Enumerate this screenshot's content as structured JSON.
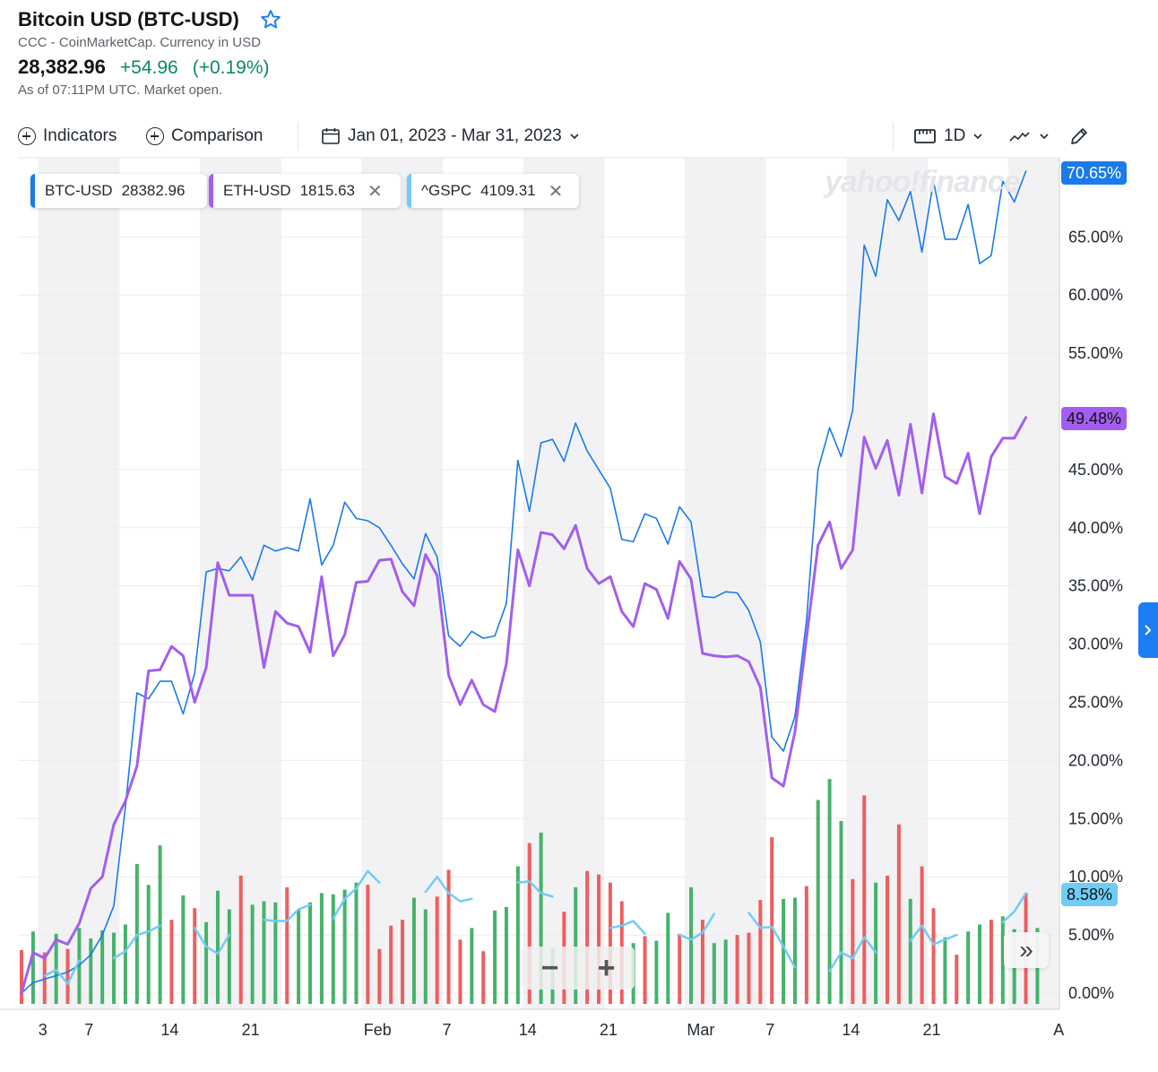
{
  "header": {
    "title": "Bitcoin USD (BTC-USD)",
    "subtitle": "CCC - CoinMarketCap. Currency in USD",
    "price": "28,382.96",
    "change": "+54.96",
    "change_pct": "(+0.19%)",
    "as_of": "As of 07:11PM UTC. Market open."
  },
  "toolbar": {
    "indicators_label": "Indicators",
    "comparison_label": "Comparison",
    "date_range_label": "Jan 01, 2023 - Mar 31, 2023",
    "interval_label": "1D"
  },
  "watermark": "yahoo!finance",
  "legend": [
    {
      "symbol": "BTC-USD",
      "value": "28382.96",
      "color": "#1a7bea"
    },
    {
      "symbol": "ETH-USD",
      "value": "1815.63",
      "color": "#a25ef0"
    },
    {
      "symbol": "^GSPC",
      "value": "4109.31",
      "color": "#6fcdf5"
    }
  ],
  "tags": {
    "btc": "70.65%",
    "eth": "49.48%",
    "gspc": "8.58%"
  },
  "chart_data": {
    "type": "line",
    "y_axis_labels": [
      "70.65%",
      "65.00%",
      "60.00%",
      "55.00%",
      "49.48%",
      "45.00%",
      "40.00%",
      "35.00%",
      "30.00%",
      "25.00%",
      "20.00%",
      "15.00%",
      "10.00%",
      "8.58%",
      "5.00%",
      "0.00%"
    ],
    "y_ticks": [
      65,
      60,
      55,
      45,
      40,
      35,
      30,
      25,
      20,
      15,
      10,
      5,
      0
    ],
    "y_tick_labels": [
      "65.00%",
      "60.00%",
      "55.00%",
      "45.00%",
      "40.00%",
      "35.00%",
      "30.00%",
      "25.00%",
      "20.00%",
      "15.00%",
      "10.00%",
      "5.00%",
      "0.00%"
    ],
    "ylim": [
      -1,
      75
    ],
    "x_tick_labels": [
      "3",
      "7",
      "14",
      "21",
      "Feb",
      "7",
      "14",
      "21",
      "Mar",
      "7",
      "14",
      "21",
      "A"
    ],
    "x_tick_days": [
      2,
      6,
      13,
      20,
      31,
      37,
      44,
      51,
      59,
      65,
      72,
      79,
      90
    ],
    "xlim": [
      -0.3,
      89.6
    ],
    "series": [
      {
        "name": "BTC-USD",
        "color": "#1a7bea",
        "values": [
          0,
          0.9,
          1.2,
          1.5,
          1.8,
          2.4,
          3.3,
          5,
          7.5,
          16,
          25.8,
          25.3,
          26.8,
          26.8,
          24,
          27.5,
          36.2,
          36.5,
          36.3,
          37.5,
          35.5,
          38.5,
          38,
          38.3,
          38,
          42.5,
          36.8,
          38.5,
          42.2,
          40.8,
          40.6,
          40,
          38.5,
          36.9,
          35.6,
          39.5,
          37.5,
          30.7,
          29.8,
          31.1,
          30.5,
          30.7,
          33.5,
          45.8,
          41.4,
          47.3,
          47.6,
          45.7,
          49,
          46.6,
          45,
          43.4,
          39,
          38.8,
          41.2,
          40.8,
          38.6,
          41.8,
          40.5,
          34.1,
          34,
          34.5,
          34.4,
          32.9,
          30.2,
          22,
          20.8,
          23.8,
          32,
          45,
          48.6,
          46.1,
          50.1,
          64.3,
          61.6,
          68.2,
          66.4,
          68.9,
          63.7,
          69.8,
          64.8,
          64.8,
          67.8,
          62.7,
          63.4,
          69.8,
          68,
          70.65
        ]
      },
      {
        "name": "ETH-USD",
        "color": "#a25ef0",
        "values": [
          0,
          3.5,
          3,
          4.6,
          4.2,
          6,
          9,
          10,
          14.5,
          16.5,
          19.5,
          27.7,
          27.8,
          29.8,
          29,
          25,
          28,
          37,
          34.2,
          34.2,
          34.2,
          28,
          32.8,
          31.8,
          31.5,
          29.3,
          35.8,
          29,
          30.8,
          35.3,
          35.4,
          37.2,
          37.3,
          34.5,
          33.3,
          37.7,
          35.9,
          27.3,
          24.8,
          26.9,
          24.8,
          24.2,
          28.3,
          38.1,
          35,
          39.6,
          39.4,
          38.2,
          40.2,
          36.5,
          35.2,
          35.8,
          32.8,
          31.5,
          35.2,
          34.7,
          32.2,
          37.1,
          35.6,
          29.2,
          29,
          28.9,
          29,
          28.5,
          26.3,
          18.5,
          17.8,
          22.5,
          30.5,
          38.5,
          40.5,
          36.5,
          38.1,
          47.8,
          45.1,
          47.5,
          42.8,
          48.9,
          43,
          49.8,
          44.4,
          43.8,
          46.4,
          41.2,
          46.1,
          47.7,
          47.7,
          49.48
        ]
      },
      {
        "name": "^GSPC",
        "color": "#6fcdf5",
        "values": [
          0,
          null,
          1.5,
          2,
          0.8,
          2.8,
          null,
          null,
          3,
          3.6,
          5,
          5.3,
          5.8,
          null,
          null,
          5.6,
          4,
          3.4,
          5,
          null,
          null,
          6.3,
          6.2,
          6.2,
          7.2,
          7.6,
          null,
          6.4,
          8.1,
          9,
          10.5,
          9.5,
          null,
          null,
          null,
          8.7,
          10,
          8.6,
          7.9,
          8.1,
          null,
          null,
          null,
          9.5,
          9.6,
          8.6,
          8.3,
          null,
          null,
          null,
          null,
          5.6,
          5.8,
          6.2,
          5.1,
          null,
          null,
          5,
          4.6,
          5.2,
          6.8,
          null,
          null,
          6.9,
          5.6,
          5.7,
          4,
          2.2,
          null,
          null,
          1.9,
          3.5,
          3,
          4.8,
          3.5,
          null,
          null,
          4.5,
          5.8,
          4.2,
          4.6,
          5,
          null,
          null,
          null,
          6.1,
          7,
          8.58
        ]
      }
    ],
    "volume_bars": {
      "colors": {
        "up": "#45b26b",
        "down": "#ee5e5e"
      },
      "up": [
        0,
        1,
        0,
        1,
        0,
        1,
        1,
        1,
        1,
        1,
        1,
        1,
        1,
        0,
        1,
        0,
        1,
        1,
        1,
        0,
        1,
        1,
        1,
        0,
        1,
        1,
        1,
        1,
        1,
        1,
        0,
        0,
        0,
        0,
        1,
        1,
        0,
        0,
        0,
        1,
        0,
        1,
        1,
        1,
        0,
        1,
        1,
        0,
        1,
        0,
        0,
        0,
        0,
        1,
        0,
        1,
        1,
        0,
        1,
        0,
        1,
        1,
        0,
        0,
        0,
        0,
        1,
        1,
        0,
        1,
        1,
        1,
        0,
        0,
        1,
        0,
        0,
        1,
        0,
        0,
        1,
        0,
        1,
        1,
        0,
        1,
        1,
        0,
        1
      ],
      "heights": [
        3.7,
        5.3,
        3.5,
        5.1,
        3.8,
        5.6,
        4.7,
        5.4,
        5.2,
        5.9,
        11.1,
        9.3,
        12.7,
        6.3,
        8.4,
        7.3,
        6.1,
        8.8,
        7.2,
        10.1,
        7.6,
        7.9,
        7.8,
        9.1,
        7.2,
        7.8,
        8.6,
        8.5,
        8.9,
        9.5,
        9.3,
        3.8,
        5.8,
        6.3,
        8.2,
        7.2,
        8.3,
        10.6,
        4.6,
        5.6,
        3.6,
        7.1,
        7.4,
        10.9,
        12.9,
        13.8,
        3.8,
        7,
        9.1,
        10.5,
        10.2,
        9.5,
        7.9,
        4.3,
        4.9,
        4.5,
        6.9,
        5.1,
        9.1,
        6.3,
        4.3,
        4.6,
        5,
        5.2,
        8,
        13.4,
        8.1,
        8.2,
        9.2,
        16.6,
        18.4,
        14.8,
        9.8,
        17,
        9.5,
        10.1,
        14.5,
        8.1,
        10.9,
        7.3,
        4.8,
        3.3,
        5.3,
        5.9,
        6.3,
        6.6,
        5.5,
        8.6,
        5.6
      ]
    }
  }
}
